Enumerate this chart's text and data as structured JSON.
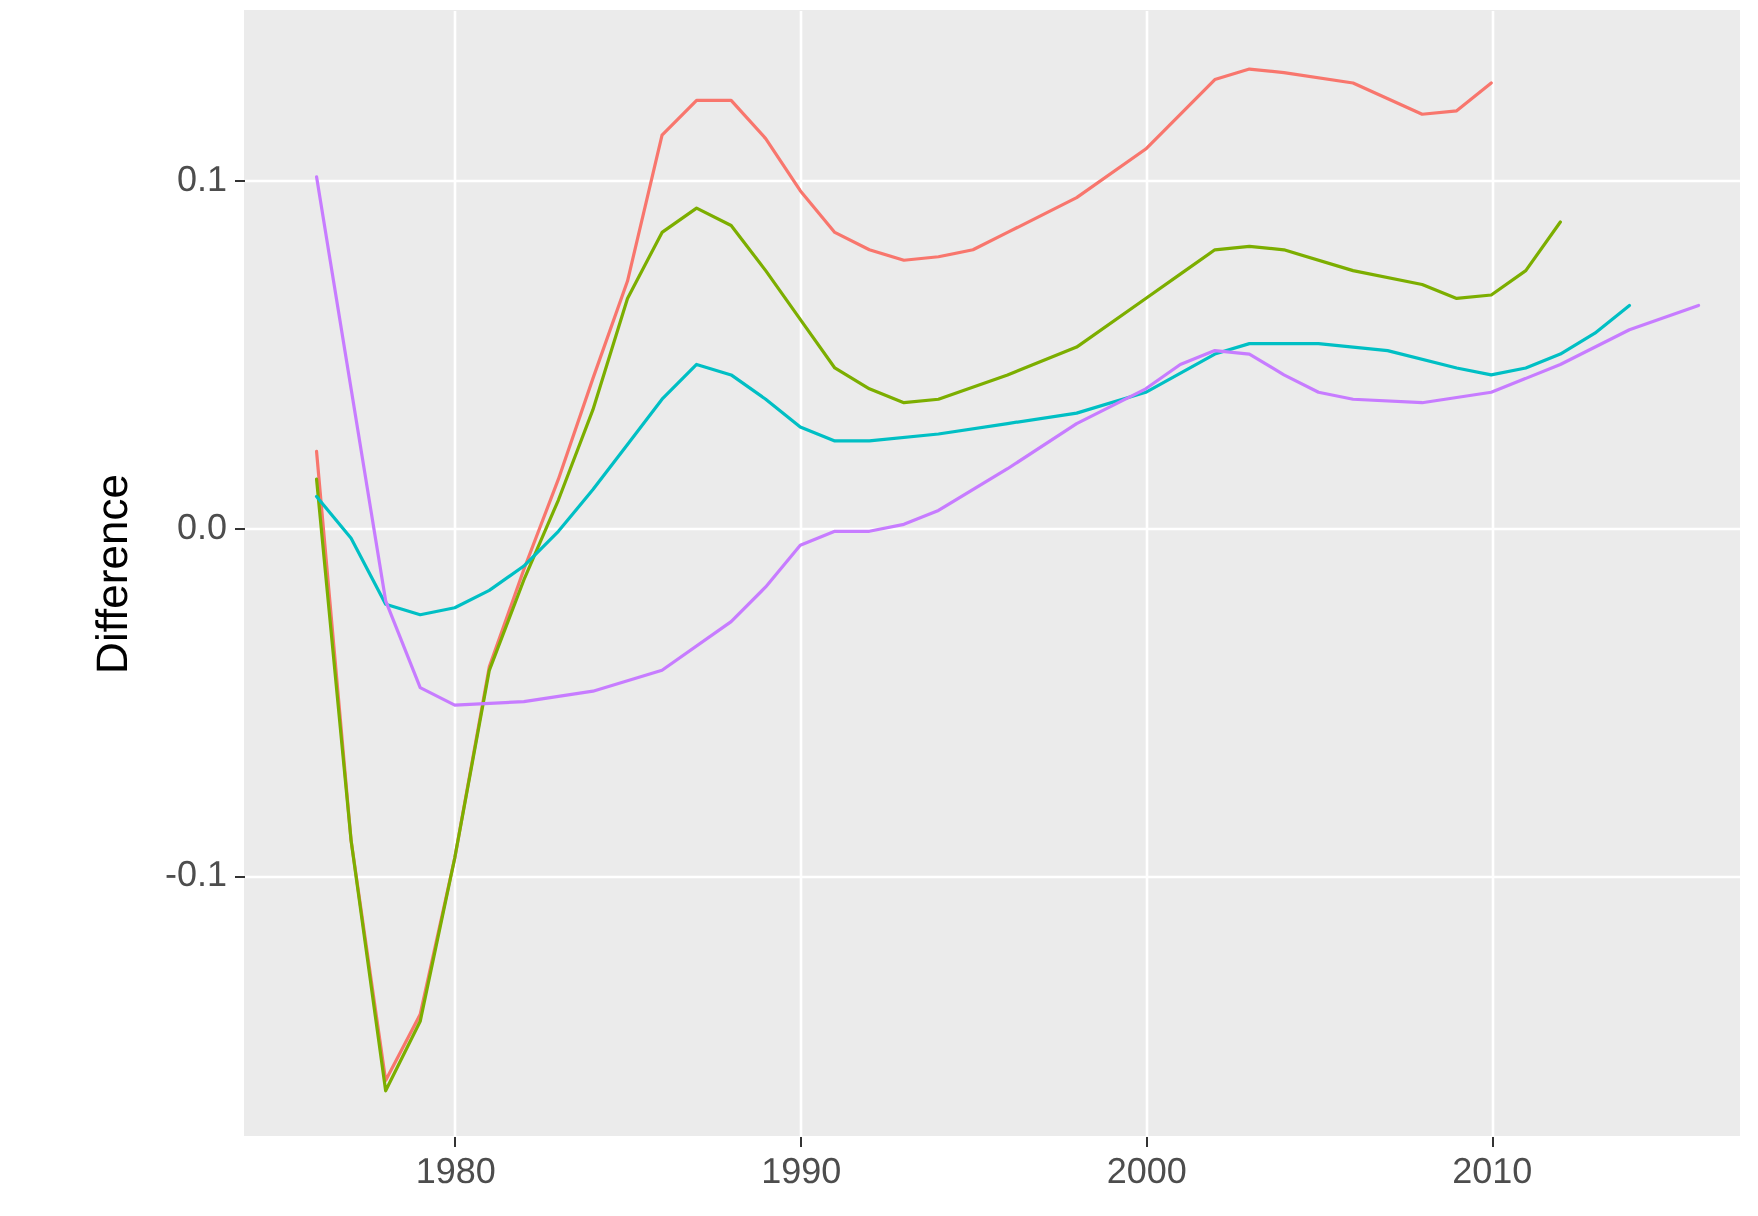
{
  "chart_data": {
    "type": "line",
    "ylabel": "Difference",
    "xlim": [
      1973.9,
      2017.2
    ],
    "ylim": [
      -0.175,
      0.149
    ],
    "xticks": [
      1980,
      1990,
      2000,
      2010
    ],
    "yticks": [
      {
        "value": -0.1,
        "label": "-0.1"
      },
      {
        "value": 0,
        "label": "0.0"
      },
      {
        "value": 0.1,
        "label": "0.1"
      }
    ],
    "grid": true,
    "series": [
      {
        "color": "#f8766d",
        "x": [
          1976,
          1977,
          1978,
          1979,
          1980,
          1981,
          1982,
          1983,
          1984,
          1985,
          1986,
          1987,
          1988,
          1989,
          1990,
          1991,
          1992,
          1993,
          1994,
          1995,
          1996,
          1998,
          2000,
          2001,
          2002,
          2003,
          2004,
          2006,
          2008,
          2009,
          2010
        ],
        "values": [
          0.022,
          -0.09,
          -0.159,
          -0.14,
          -0.095,
          -0.04,
          -0.012,
          0.014,
          0.043,
          0.071,
          0.113,
          0.123,
          0.123,
          0.112,
          0.097,
          0.085,
          0.08,
          0.077,
          0.078,
          0.08,
          0.085,
          0.095,
          0.109,
          0.119,
          0.129,
          0.132,
          0.131,
          0.128,
          0.119,
          0.12,
          0.128
        ]
      },
      {
        "color": "#7cae00",
        "x": [
          1976,
          1977,
          1978,
          1979,
          1980,
          1981,
          1982,
          1983,
          1984,
          1985,
          1986,
          1987,
          1988,
          1989,
          1990,
          1991,
          1992,
          1993,
          1994,
          1996,
          1998,
          2000,
          2001,
          2002,
          2003,
          2004,
          2006,
          2008,
          2009,
          2010,
          2011,
          2012
        ],
        "values": [
          0.014,
          -0.09,
          -0.162,
          -0.142,
          -0.095,
          -0.041,
          -0.015,
          0.008,
          0.034,
          0.066,
          0.085,
          0.092,
          0.087,
          0.074,
          0.06,
          0.046,
          0.04,
          0.036,
          0.037,
          0.044,
          0.052,
          0.066,
          0.073,
          0.08,
          0.081,
          0.08,
          0.074,
          0.07,
          0.066,
          0.067,
          0.074,
          0.088
        ]
      },
      {
        "color": "#00bfc4",
        "x": [
          1976,
          1977,
          1978,
          1979,
          1980,
          1981,
          1982,
          1983,
          1984,
          1985,
          1986,
          1987,
          1988,
          1989,
          1990,
          1991,
          1992,
          1994,
          1996,
          1998,
          2000,
          2002,
          2003,
          2005,
          2007,
          2009,
          2010,
          2011,
          2012,
          2013,
          2014
        ],
        "values": [
          0.009,
          -0.003,
          -0.022,
          -0.025,
          -0.023,
          -0.018,
          -0.011,
          -0.001,
          0.011,
          0.024,
          0.037,
          0.047,
          0.044,
          0.037,
          0.029,
          0.025,
          0.025,
          0.027,
          0.03,
          0.033,
          0.039,
          0.05,
          0.053,
          0.053,
          0.051,
          0.046,
          0.044,
          0.046,
          0.05,
          0.056,
          0.064
        ]
      },
      {
        "color": "#c77cff",
        "x": [
          1976,
          1977,
          1978,
          1979,
          1980,
          1982,
          1984,
          1986,
          1988,
          1989,
          1990,
          1991,
          1992,
          1993,
          1994,
          1996,
          1998,
          2000,
          2001,
          2002,
          2003,
          2004,
          2005,
          2006,
          2008,
          2010,
          2012,
          2014,
          2016
        ],
        "values": [
          0.101,
          0.04,
          -0.021,
          -0.046,
          -0.051,
          -0.05,
          -0.047,
          -0.041,
          -0.027,
          -0.017,
          -0.005,
          -0.001,
          -0.001,
          0.001,
          0.005,
          0.017,
          0.03,
          0.04,
          0.047,
          0.051,
          0.05,
          0.044,
          0.039,
          0.037,
          0.036,
          0.039,
          0.047,
          0.057,
          0.064
        ]
      }
    ]
  }
}
